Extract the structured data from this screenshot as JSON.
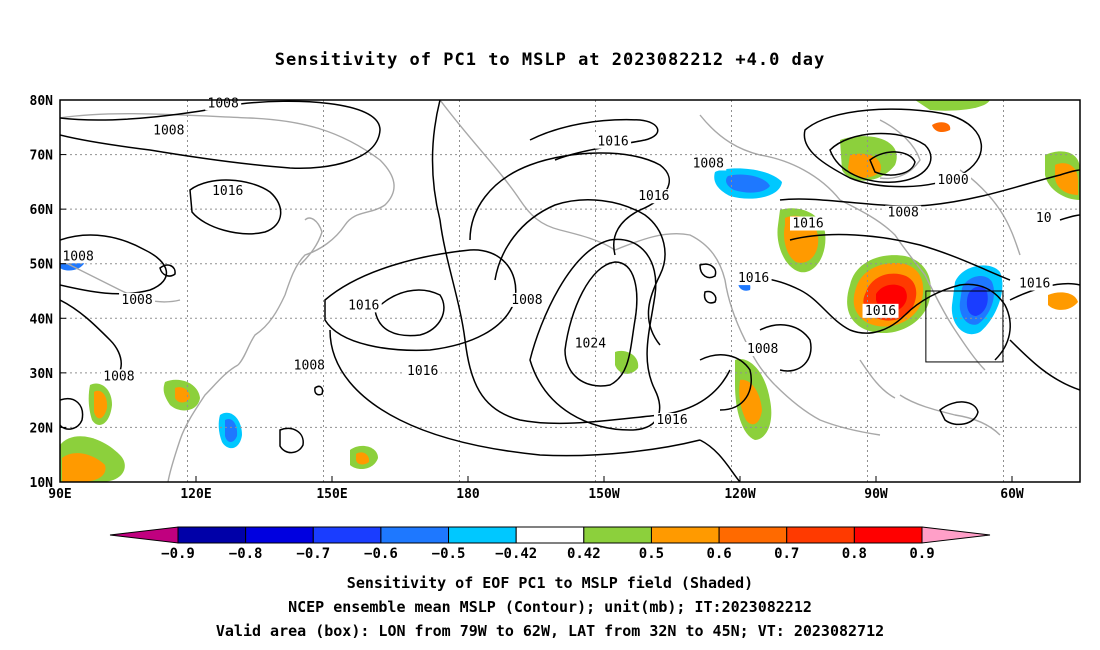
{
  "title": "Sensitivity of PC1 to MSLP at 2023082212 +4.0 day",
  "lon_ticks": [
    "90E",
    "120E",
    "150E",
    "180",
    "150W",
    "120W",
    "90W",
    "60W"
  ],
  "lat_ticks": [
    "80N",
    "70N",
    "60N",
    "50N",
    "40N",
    "30N",
    "20N",
    "10N"
  ],
  "contour_labels": [
    {
      "text": "1008",
      "lon": 126,
      "lat": 79
    },
    {
      "text": "1008",
      "lon": 114,
      "lat": 74
    },
    {
      "text": "1016",
      "lon": 212,
      "lat": 72
    },
    {
      "text": "1008",
      "lon": 233,
      "lat": 68
    },
    {
      "text": "1016",
      "lon": 127,
      "lat": 63
    },
    {
      "text": "1016",
      "lon": 221,
      "lat": 62
    },
    {
      "text": "1000",
      "lon": 287,
      "lat": 65
    },
    {
      "text": "1008",
      "lon": 276,
      "lat": 59
    },
    {
      "text": "10",
      "lon": 307,
      "lat": 58
    },
    {
      "text": "1008",
      "lon": 94,
      "lat": 51
    },
    {
      "text": "1016",
      "lon": 255,
      "lat": 57
    },
    {
      "text": "1016",
      "lon": 243,
      "lat": 47
    },
    {
      "text": "1016",
      "lon": 305,
      "lat": 46
    },
    {
      "text": "1008",
      "lon": 107,
      "lat": 43
    },
    {
      "text": "1016",
      "lon": 157,
      "lat": 42
    },
    {
      "text": "1008",
      "lon": 193,
      "lat": 43
    },
    {
      "text": "1016",
      "lon": 271,
      "lat": 41
    },
    {
      "text": "1024",
      "lon": 207,
      "lat": 35
    },
    {
      "text": "1008",
      "lon": 245,
      "lat": 34
    },
    {
      "text": "1008",
      "lon": 103,
      "lat": 29
    },
    {
      "text": "1008",
      "lon": 145,
      "lat": 31
    },
    {
      "text": "1016",
      "lon": 170,
      "lat": 30
    },
    {
      "text": "1016",
      "lon": 225,
      "lat": 21
    }
  ],
  "valid_box": {
    "lon_min": -79,
    "lon_max": -62,
    "lat_min": 32,
    "lat_max": 45
  },
  "colorbar": {
    "colors": [
      "#c0007f",
      "#0000a8",
      "#0000e0",
      "#1a3dff",
      "#1e78ff",
      "#00c8ff",
      "#ffffff",
      "#8cd03c",
      "#ff9a00",
      "#ff6a00",
      "#ff3a00",
      "#ff0000",
      "#ff9fc8"
    ],
    "labels": [
      "−0.9",
      "−0.8",
      "−0.7",
      "−0.6",
      "−0.5",
      "−0.42",
      "0.42",
      "0.5",
      "0.6",
      "0.7",
      "0.8",
      "0.9"
    ]
  },
  "captions": {
    "line1": "Sensitivity of EOF PC1 to MSLP field (Shaded)",
    "line2": "NCEP ensemble mean MSLP (Contour); unit(mb); IT:2023082212",
    "line3": "Valid area (box): LON from 79W to 62W, LAT from 32N to 45N; VT: 2023082712"
  }
}
